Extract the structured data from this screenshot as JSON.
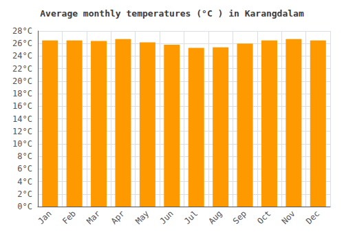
{
  "chart_data": {
    "type": "bar",
    "title": "Average monthly temperatures (°C ) in Karangdalam",
    "categories": [
      "Jan",
      "Feb",
      "Mar",
      "Apr",
      "May",
      "Jun",
      "Jul",
      "Aug",
      "Sep",
      "Oct",
      "Nov",
      "Dec"
    ],
    "values": [
      26.5,
      26.5,
      26.4,
      26.7,
      26.2,
      25.8,
      25.3,
      25.4,
      26.0,
      26.5,
      26.7,
      26.5
    ],
    "color": "#FF9900",
    "ylim": [
      0,
      28
    ],
    "yticks": [
      {
        "value": 0,
        "label": "0°C"
      },
      {
        "value": 2,
        "label": "2°C"
      },
      {
        "value": 4,
        "label": "4°C"
      },
      {
        "value": 6,
        "label": "6°C"
      },
      {
        "value": 8,
        "label": "8°C"
      },
      {
        "value": 10,
        "label": "10°C"
      },
      {
        "value": 12,
        "label": "12°C"
      },
      {
        "value": 14,
        "label": "14°C"
      },
      {
        "value": 16,
        "label": "16°C"
      },
      {
        "value": 18,
        "label": "18°C"
      },
      {
        "value": 20,
        "label": "20°C"
      },
      {
        "value": 22,
        "label": "22°C"
      },
      {
        "value": 24,
        "label": "24°C"
      },
      {
        "value": 26,
        "label": "26°C"
      },
      {
        "value": 28,
        "label": "28°C"
      }
    ],
    "grid": true
  }
}
